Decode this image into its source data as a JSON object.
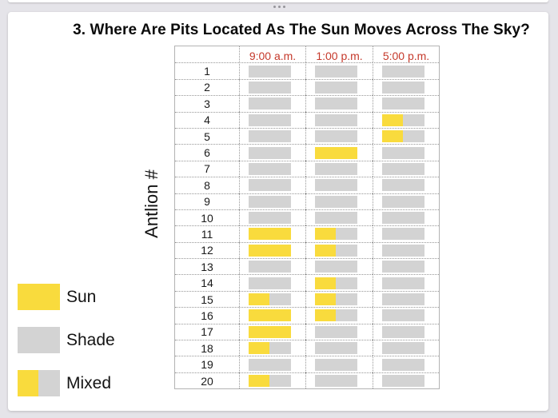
{
  "window": {
    "drag_handle": "drag-handle-dots"
  },
  "colors": {
    "sun": "#F9DB3D",
    "shade": "#D3D3D3",
    "header_red": "#C5392B"
  },
  "legend": {
    "items": [
      {
        "label": "Sun",
        "swatch": "sun"
      },
      {
        "label": "Shade",
        "swatch": "shade"
      },
      {
        "label": "Mixed",
        "swatch": "mixed"
      }
    ]
  },
  "chart_data": {
    "type": "table",
    "title": "3. Where Are Pits Located As The Sun Moves Across The Sky?",
    "ylabel": "Antlion #",
    "categories": [
      "9:00 a.m.",
      "1:00 p.m.",
      "5:00 p.m."
    ],
    "legend_entries": [
      "Sun",
      "Shade",
      "Mixed"
    ],
    "rows": [
      {
        "antlion": "1",
        "values": [
          "Shade",
          "Shade",
          "Shade"
        ]
      },
      {
        "antlion": "2",
        "values": [
          "Shade",
          "Shade",
          "Shade"
        ]
      },
      {
        "antlion": "3",
        "values": [
          "Shade",
          "Shade",
          "Shade"
        ]
      },
      {
        "antlion": "4",
        "values": [
          "Shade",
          "Shade",
          "Mixed"
        ]
      },
      {
        "antlion": "5",
        "values": [
          "Shade",
          "Shade",
          "Mixed"
        ]
      },
      {
        "antlion": "6",
        "values": [
          "Shade",
          "Sun",
          "Shade"
        ]
      },
      {
        "antlion": "7",
        "values": [
          "Shade",
          "Shade",
          "Shade"
        ]
      },
      {
        "antlion": "8",
        "values": [
          "Shade",
          "Shade",
          "Shade"
        ]
      },
      {
        "antlion": "9",
        "values": [
          "Shade",
          "Shade",
          "Shade"
        ]
      },
      {
        "antlion": "10",
        "values": [
          "Shade",
          "Shade",
          "Shade"
        ]
      },
      {
        "antlion": "11",
        "values": [
          "Sun",
          "Mixed",
          "Shade"
        ]
      },
      {
        "antlion": "12",
        "values": [
          "Sun",
          "Mixed",
          "Shade"
        ]
      },
      {
        "antlion": "13",
        "values": [
          "Shade",
          "Shade",
          "Shade"
        ]
      },
      {
        "antlion": "14",
        "values": [
          "Shade",
          "Mixed",
          "Shade"
        ]
      },
      {
        "antlion": "15",
        "values": [
          "Mixed",
          "Mixed",
          "Shade"
        ]
      },
      {
        "antlion": "16",
        "values": [
          "Sun",
          "Mixed",
          "Shade"
        ]
      },
      {
        "antlion": "17",
        "values": [
          "Sun",
          "Shade",
          "Shade"
        ]
      },
      {
        "antlion": "18",
        "values": [
          "Mixed",
          "Shade",
          "Shade"
        ]
      },
      {
        "antlion": "19",
        "values": [
          "Shade",
          "Shade",
          "Shade"
        ]
      },
      {
        "antlion": "20",
        "values": [
          "Mixed",
          "Shade",
          "Shade"
        ]
      }
    ]
  }
}
